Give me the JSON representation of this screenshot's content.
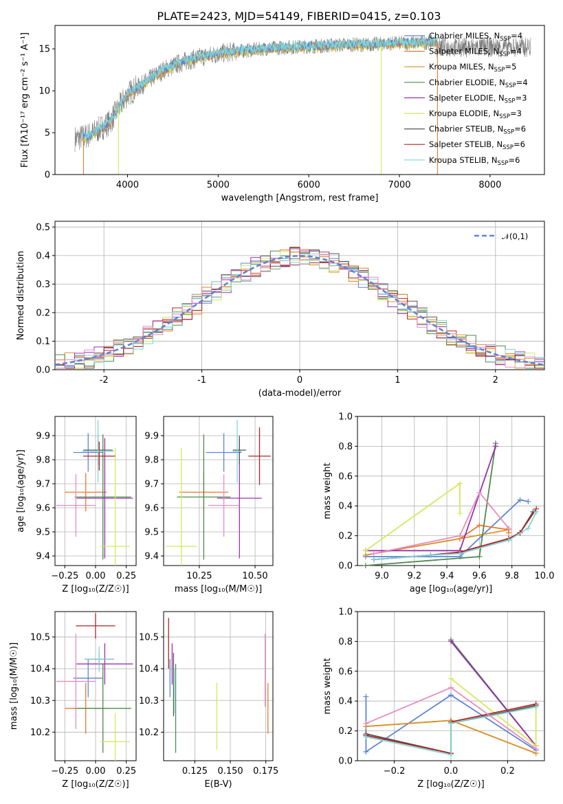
{
  "figure_title": "PLATE=2423, MJD=54149, FIBERID=0415, z=0.103",
  "colors": {
    "Chabrier MILES": "#5b84d6",
    "Salpeter MILES": "#e8772e",
    "Kroupa MILES": "#d7942a",
    "Chabrier ELODIE": "#4c8a4c",
    "Salpeter ELODIE": "#9b30b0",
    "Kroupa ELODIE": "#d4e85a",
    "Chabrier STELIB": "#555555",
    "Salpeter STELIB": "#b22222",
    "Kroupa STELIB": "#7fd6d6",
    "Salpeter MILES hist": "#e88bc0",
    "normal": "#5b84d6",
    "grid": "#b0b0b0"
  },
  "chart_data": [
    {
      "type": "line",
      "panel": "spectrum",
      "xlabel": "wavelength [Angstrom, rest frame]",
      "ylabel": "Flux [fλ10⁻¹⁷ erg cm⁻² s⁻¹ A⁻¹]",
      "xlim": [
        3200,
        8600
      ],
      "ylim": [
        0,
        17.8
      ],
      "xticks": [
        4000,
        5000,
        6000,
        7000,
        8000
      ],
      "yticks": [
        0,
        5,
        10,
        15
      ],
      "grid": false,
      "legend_position": "top-right",
      "legend": [
        {
          "label": "Chabrier MILES, N",
          "sub": "SSP",
          "suffix": "=4",
          "color": "Chabrier MILES"
        },
        {
          "label": "Salpeter MILES, N",
          "sub": "SSP",
          "suffix": "=4",
          "color": "Salpeter MILES"
        },
        {
          "label": "Kroupa MILES, N",
          "sub": "SSP",
          "suffix": "=5",
          "color": "Kroupa MILES"
        },
        {
          "label": "Chabrier ELODIE, N",
          "sub": "SSP",
          "suffix": "=4",
          "color": "Chabrier ELODIE"
        },
        {
          "label": "Salpeter ELODIE, N",
          "sub": "SSP",
          "suffix": "=3",
          "color": "Salpeter ELODIE"
        },
        {
          "label": "Kroupa ELODIE, N",
          "sub": "SSP",
          "suffix": "=3",
          "color": "Kroupa ELODIE"
        },
        {
          "label": "Chabrier STELIB, N",
          "sub": "SSP",
          "suffix": "=6",
          "color": "Chabrier STELIB"
        },
        {
          "label": "Salpeter STELIB, N",
          "sub": "SSP",
          "suffix": "=6",
          "color": "Salpeter STELIB"
        },
        {
          "label": "Kroupa STELIB, N",
          "sub": "SSP",
          "suffix": "=6",
          "color": "Kroupa STELIB"
        }
      ],
      "spectrum_trend": {
        "x": [
          3450,
          3600,
          3800,
          4000,
          4200,
          4400,
          4600,
          4800,
          5000,
          5200,
          5400,
          5600,
          5800,
          6000,
          6200,
          6400,
          6600,
          6800,
          7000,
          7200,
          7400
        ],
        "y": [
          4.3,
          4.8,
          6.2,
          9.6,
          11.0,
          12.5,
          13.4,
          14.0,
          14.4,
          14.7,
          14.9,
          15.1,
          15.2,
          15.3,
          15.4,
          15.5,
          15.5,
          15.6,
          15.7,
          15.7,
          15.8
        ]
      },
      "observed_extent": [
        3420,
        8450
      ],
      "model_extent": [
        3500,
        7420
      ],
      "model_dropouts": [
        {
          "x": 3515,
          "color": "Salpeter MILES"
        },
        {
          "x": 3900,
          "color": "Kroupa ELODIE"
        },
        {
          "x": 6800,
          "color": "Kroupa ELODIE"
        },
        {
          "x": 7420,
          "color": "Salpeter MILES"
        }
      ]
    },
    {
      "type": "step",
      "panel": "residual histogram",
      "xlabel": "(data-model)/error",
      "ylabel": "Normed distribution",
      "xlim": [
        -2.5,
        2.5
      ],
      "ylim": [
        0,
        0.52
      ],
      "xticks": [
        -2,
        -1,
        0,
        1,
        2
      ],
      "yticks": [
        0.0,
        0.1,
        0.2,
        0.3,
        0.4,
        0.5
      ],
      "grid": true,
      "legend_position": "top-right",
      "reference_curve": {
        "label": "𝒩(0,1)",
        "mu": 0,
        "sigma": 1,
        "color": "normal"
      },
      "bin_width": 0.1,
      "series_colors": [
        "Chabrier MILES",
        "Salpeter MILES",
        "Kroupa MILES",
        "Chabrier ELODIE",
        "Salpeter ELODIE",
        "Kroupa ELODIE",
        "Chabrier STELIB",
        "Salpeter STELIB",
        "Kroupa STELIB",
        "Salpeter MILES hist"
      ]
    },
    {
      "type": "errorbar",
      "panel": "age vs Z",
      "xlabel": "Z [log₁₀(Z/Z☉)]",
      "ylabel": "age  [log₁₀(age/yr)]",
      "xlim": [
        -0.33,
        0.33
      ],
      "ylim": [
        9.36,
        9.98
      ],
      "xticks": [
        -0.25,
        0.0,
        0.25
      ],
      "xticklabels": [
        "−0.25",
        "0.00",
        "0.25"
      ],
      "yticks": [
        9.4,
        9.5,
        9.6,
        9.7,
        9.8,
        9.9
      ],
      "grid": true,
      "points": [
        {
          "color": "Chabrier MILES",
          "x": -0.06,
          "xerr": 0.12,
          "y": 9.83,
          "yerr": 0.08
        },
        {
          "color": "Salpeter MILES",
          "x": -0.08,
          "xerr": 0.17,
          "y": 9.665,
          "yerr": 0.08
        },
        {
          "color": "Chabrier ELODIE",
          "x": 0.06,
          "xerr": 0.23,
          "y": 9.645,
          "yerr": 0.26
        },
        {
          "color": "Salpeter ELODIE",
          "x": 0.075,
          "xerr": 0.23,
          "y": 9.64,
          "yerr": 0.25
        },
        {
          "color": "Kroupa ELODIE",
          "x": 0.16,
          "xerr": 0.12,
          "y": 9.44,
          "yerr": 0.41
        },
        {
          "color": "Chabrier STELIB",
          "x": 0.02,
          "xerr": 0.12,
          "y": 9.84,
          "yerr": 0.06
        },
        {
          "color": "Salpeter STELIB",
          "x": 0.03,
          "xerr": 0.13,
          "y": 9.815,
          "yerr": 0.06
        },
        {
          "color": "Kroupa STELIB",
          "x": 0.02,
          "xerr": 0.13,
          "y": 9.835,
          "yerr": 0.13
        },
        {
          "color": "Salpeter MILES hist",
          "x": -0.16,
          "xerr": 0.16,
          "y": 9.61,
          "yerr": 0.13
        }
      ]
    },
    {
      "type": "errorbar",
      "panel": "age vs mass",
      "xlabel": "mass [log₁₀(M/M☉)]",
      "ylabel": "",
      "xlim": [
        10.09,
        10.58
      ],
      "ylim": [
        9.36,
        9.98
      ],
      "xticks": [
        10.25,
        10.5
      ],
      "xticklabels": [
        "10.25",
        "10.50"
      ],
      "yticks": [
        9.4,
        9.5,
        9.6,
        9.7,
        9.8,
        9.9
      ],
      "grid": true,
      "points": [
        {
          "color": "Chabrier MILES",
          "x": 10.36,
          "xerr": 0.08,
          "y": 9.83,
          "yerr": 0.08
        },
        {
          "color": "Salpeter MILES",
          "x": 10.27,
          "xerr": 0.11,
          "y": 9.665,
          "yerr": 0.08
        },
        {
          "color": "Chabrier ELODIE",
          "x": 10.27,
          "xerr": 0.12,
          "y": 9.645,
          "yerr": 0.26
        },
        {
          "color": "Salpeter ELODIE",
          "x": 10.43,
          "xerr": 0.1,
          "y": 9.64,
          "yerr": 0.25
        },
        {
          "color": "Kroupa ELODIE",
          "x": 10.17,
          "xerr": 0.07,
          "y": 9.44,
          "yerr": 0.41
        },
        {
          "color": "Chabrier STELIB",
          "x": 10.43,
          "xerr": 0.03,
          "y": 9.84,
          "yerr": 0.06
        },
        {
          "color": "Salpeter STELIB",
          "x": 10.52,
          "xerr": 0.05,
          "y": 9.815,
          "yerr": 0.12
        },
        {
          "color": "Kroupa STELIB",
          "x": 10.42,
          "xerr": 0.02,
          "y": 9.835,
          "yerr": 0.13
        },
        {
          "color": "Salpeter MILES hist",
          "x": 10.36,
          "xerr": 0.07,
          "y": 9.61,
          "yerr": 0.13
        }
      ]
    },
    {
      "type": "line",
      "panel": "mass weight vs age",
      "xlabel": "age  [log₁₀(age/yr)]",
      "ylabel": "mass weight",
      "xlim": [
        8.85,
        10.0
      ],
      "ylim": [
        0,
        1.0
      ],
      "xticks": [
        9.0,
        9.2,
        9.4,
        9.6,
        9.8,
        10.0
      ],
      "xticklabels": [
        "9.0",
        "9.2",
        "9.4",
        "9.6",
        "9.8",
        "10.0"
      ],
      "yticks": [
        0.0,
        0.2,
        0.4,
        0.6,
        0.8,
        1.0
      ],
      "grid": true,
      "series": [
        {
          "color": "Chabrier MILES",
          "x": [
            8.9,
            9.48,
            9.85,
            9.9
          ],
          "y": [
            0.06,
            0.06,
            0.44,
            0.43
          ]
        },
        {
          "color": "Salpeter MILES",
          "x": [
            8.9,
            9.48,
            9.6,
            9.78,
            9.78
          ],
          "y": [
            0.07,
            0.18,
            0.27,
            0.24,
            0.22
          ]
        },
        {
          "color": "Kroupa MILES",
          "x": [
            8.9,
            9.48,
            9.78
          ],
          "y": [
            0.07,
            0.18,
            0.24
          ]
        },
        {
          "color": "Chabrier ELODIE",
          "x": [
            8.9,
            9.6,
            9.7
          ],
          "y": [
            0.0,
            0.06,
            0.82
          ]
        },
        {
          "color": "Salpeter ELODIE",
          "x": [
            8.9,
            9.48,
            9.7
          ],
          "y": [
            0.1,
            0.1,
            0.8
          ]
        },
        {
          "color": "Kroupa ELODIE",
          "x": [
            8.9,
            9.48,
            9.48
          ],
          "y": [
            0.1,
            0.55,
            0.35
          ]
        },
        {
          "color": "Chabrier STELIB",
          "x": [
            8.95,
            9.3,
            9.48,
            9.78,
            9.85,
            9.93
          ],
          "y": [
            0.04,
            0.07,
            0.09,
            0.18,
            0.22,
            0.36
          ]
        },
        {
          "color": "Salpeter STELIB",
          "x": [
            8.95,
            9.3,
            9.48,
            9.78,
            9.85,
            9.95
          ],
          "y": [
            0.04,
            0.07,
            0.09,
            0.18,
            0.22,
            0.38
          ]
        },
        {
          "color": "Kroupa STELIB",
          "x": [
            8.95,
            9.3,
            9.48,
            9.78,
            9.9,
            9.95
          ],
          "y": [
            0.04,
            0.07,
            0.08,
            0.17,
            0.25,
            0.36
          ]
        },
        {
          "color": "Salpeter MILES hist",
          "x": [
            8.95,
            9.48,
            9.6,
            9.78
          ],
          "y": [
            0.08,
            0.2,
            0.49,
            0.25
          ]
        }
      ]
    },
    {
      "type": "errorbar",
      "panel": "mass vs Z",
      "xlabel": "Z [log₁₀(Z/Z☉)]",
      "ylabel": "mass [log₁₀(M/M☉)]",
      "xlim": [
        -0.33,
        0.33
      ],
      "ylim": [
        10.11,
        10.58
      ],
      "xticks": [
        -0.25,
        0.0,
        0.25
      ],
      "xticklabels": [
        "−0.25",
        "0.00",
        "0.25"
      ],
      "yticks": [
        10.2,
        10.3,
        10.4,
        10.5
      ],
      "grid": true,
      "points": [
        {
          "color": "Chabrier MILES",
          "x": -0.06,
          "xerr": 0.12,
          "y": 10.37,
          "yerr": 0.06
        },
        {
          "color": "Salpeter MILES",
          "x": -0.08,
          "xerr": 0.17,
          "y": 10.275,
          "yerr": 0.08
        },
        {
          "color": "Chabrier ELODIE",
          "x": 0.06,
          "xerr": 0.23,
          "y": 10.275,
          "yerr": 0.14
        },
        {
          "color": "Salpeter ELODIE",
          "x": 0.075,
          "xerr": 0.23,
          "y": 10.415,
          "yerr": 0.065
        },
        {
          "color": "Kroupa ELODIE",
          "x": 0.16,
          "xerr": 0.12,
          "y": 10.17,
          "yerr": 0.09
        },
        {
          "color": "Chabrier STELIB",
          "x": 0.03,
          "xerr": 0.12,
          "y": 10.43,
          "yerr": 0.02
        },
        {
          "color": "Salpeter STELIB",
          "x": 0.0,
          "xerr": 0.16,
          "y": 10.535,
          "yerr": 0.04
        },
        {
          "color": "Kroupa STELIB",
          "x": 0.03,
          "xerr": 0.12,
          "y": 10.43,
          "yerr": 0.04
        },
        {
          "color": "Salpeter MILES hist",
          "x": -0.16,
          "xerr": 0.16,
          "y": 10.36,
          "yerr": 0.15
        }
      ]
    },
    {
      "type": "errorbar",
      "panel": "mass vs E(B-V)",
      "xlabel": "E(B-V)",
      "ylabel": "",
      "xlim": [
        0.103,
        0.18
      ],
      "ylim": [
        10.11,
        10.58
      ],
      "xticks": [
        0.125,
        0.15,
        0.175
      ],
      "xticklabels": [
        "0.125",
        "0.150",
        "0.175"
      ],
      "yticks": [
        10.2,
        10.3,
        10.4,
        10.5
      ],
      "grid": true,
      "points": [
        {
          "color": "Chabrier MILES",
          "x": 0.1075,
          "y": 10.37,
          "yerr": 0.06
        },
        {
          "color": "Salpeter MILES",
          "x": 0.1765,
          "y": 10.275,
          "yerr": 0.08
        },
        {
          "color": "Chabrier ELODIE",
          "x": 0.1115,
          "y": 10.275,
          "yerr": 0.14
        },
        {
          "color": "Salpeter ELODIE",
          "x": 0.109,
          "y": 10.415,
          "yerr": 0.065
        },
        {
          "color": "Kroupa ELODIE",
          "x": 0.1405,
          "y": 10.25,
          "yerr": 0.105
        },
        {
          "color": "Chabrier STELIB",
          "x": 0.11,
          "y": 10.35,
          "yerr": 0.1
        },
        {
          "color": "Salpeter STELIB",
          "x": 0.1065,
          "y": 10.48,
          "yerr": 0.08
        },
        {
          "color": "Kroupa STELIB",
          "x": 0.1105,
          "y": 10.33,
          "yerr": 0.07
        },
        {
          "color": "Salpeter MILES hist",
          "x": 0.1745,
          "y": 10.395,
          "yerr": 0.115
        }
      ]
    },
    {
      "type": "line",
      "panel": "mass weight vs Z",
      "xlabel": "Z [log₁₀(Z/Z☉)]",
      "ylabel": "mass weight",
      "xlim": [
        -0.33,
        0.33
      ],
      "ylim": [
        0,
        1.0
      ],
      "xticks": [
        -0.2,
        0.0,
        0.2
      ],
      "xticklabels": [
        "−0.2",
        "0.0",
        "0.2"
      ],
      "yticks": [
        0.0,
        0.2,
        0.4,
        0.6,
        0.8,
        1.0
      ],
      "grid": true,
      "series": [
        {
          "color": "Chabrier MILES",
          "x": [
            -0.3,
            -0.3,
            0.0,
            0.3
          ],
          "y": [
            0.43,
            0.06,
            0.44,
            0.07
          ]
        },
        {
          "color": "Salpeter MILES",
          "x": [
            -0.3,
            0.0,
            0.3
          ],
          "y": [
            0.23,
            0.27,
            0.05
          ]
        },
        {
          "color": "Kroupa MILES",
          "x": [
            -0.3,
            0.0,
            0.3
          ],
          "y": [
            0.23,
            0.27,
            0.05
          ]
        },
        {
          "color": "Chabrier ELODIE",
          "x": [
            0.0,
            0.3
          ],
          "y": [
            0.81,
            0.1
          ]
        },
        {
          "color": "Salpeter ELODIE",
          "x": [
            0.0,
            0.3
          ],
          "y": [
            0.8,
            0.1
          ]
        },
        {
          "color": "Kroupa ELODIE",
          "x": [
            0.0,
            0.3,
            0.3
          ],
          "y": [
            0.55,
            0.1,
            0.37
          ]
        },
        {
          "color": "Chabrier STELIB",
          "x": [
            -0.3,
            0.0,
            0.0,
            0.3
          ],
          "y": [
            0.18,
            0.05,
            0.25,
            0.37
          ]
        },
        {
          "color": "Salpeter STELIB",
          "x": [
            -0.3,
            0.0,
            0.0,
            0.3
          ],
          "y": [
            0.17,
            0.05,
            0.26,
            0.38
          ]
        },
        {
          "color": "Kroupa STELIB",
          "x": [
            -0.3,
            0.0,
            0.0,
            0.3
          ],
          "y": [
            0.16,
            0.04,
            0.25,
            0.36
          ]
        },
        {
          "color": "Salpeter MILES hist",
          "x": [
            -0.3,
            0.0,
            0.3
          ],
          "y": [
            0.25,
            0.49,
            0.08
          ]
        }
      ]
    }
  ]
}
